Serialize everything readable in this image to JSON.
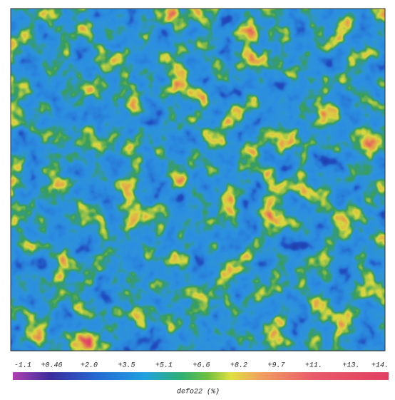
{
  "colorbar": {
    "ticks": [
      "-1.1",
      "+0.46",
      "+2.0",
      "+3.5",
      "+5.1",
      "+6.6",
      "+8.2",
      "+9.7",
      "+11.",
      "+13.",
      "+14."
    ],
    "label": "defo22 (%)"
  }
}
